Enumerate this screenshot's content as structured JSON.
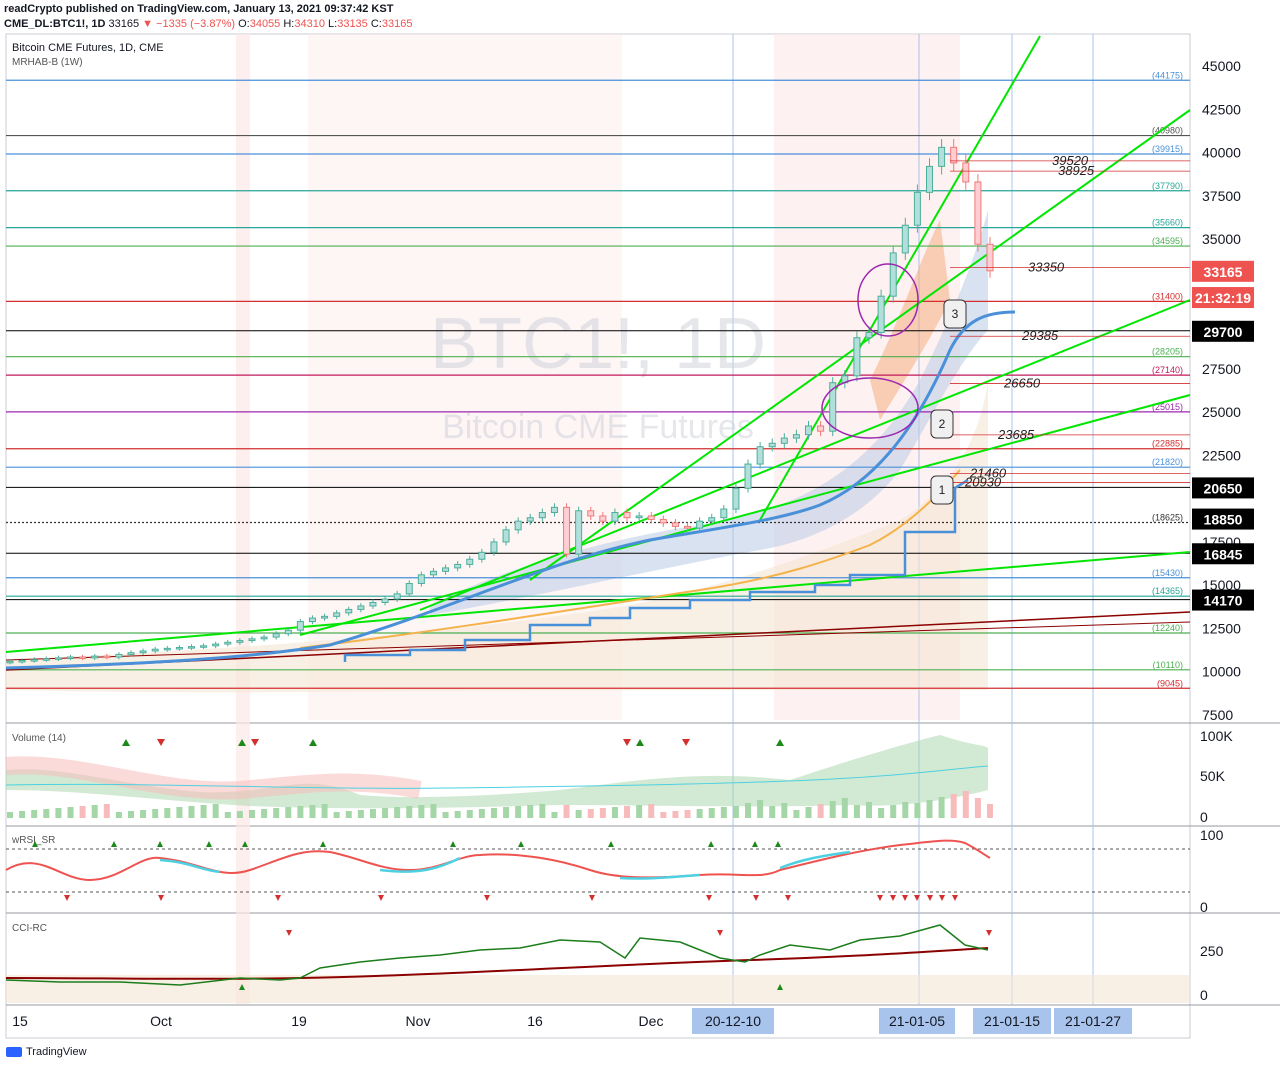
{
  "header": {
    "publisher_line": "readCrypto published on TradingView.com, January 13, 2021 09:37:42 KST",
    "symbol": "CME_DL:BTC1!, 1D",
    "last": "33165",
    "change": "−1335 (−3.87%)",
    "ohlc": {
      "o_label": "O:",
      "o": "34055",
      "h_label": "H:",
      "h": "34310",
      "l_label": "L:",
      "l": "33135",
      "c_label": "C:",
      "c": "33165"
    }
  },
  "legend": {
    "title": "Bitcoin CME Futures, 1D, CME",
    "indicator": "MRHAB-B (1W)"
  },
  "watermark": {
    "line1": "BTC1!, 1D",
    "line2": "Bitcoin CME Futures"
  },
  "footer": {
    "brand": "TradingView"
  },
  "colors": {
    "up": "#26a69a",
    "down": "#ef5350",
    "green_line": "#00e600",
    "blue_line": "#4a90d9",
    "orange_line": "#f4b24a",
    "dark_red": "#8b0000",
    "purple": "#9c27b0",
    "cci": "#1b7d1b"
  },
  "chart_data": [
    {
      "type": "candlestick",
      "title": "Bitcoin CME Futures, 1D, CME",
      "y_axis_ticks": [
        45000,
        42500,
        40000,
        37500,
        35000,
        32500,
        30000,
        27500,
        25000,
        22500,
        20000,
        17500,
        15000,
        12500,
        10000,
        7500
      ],
      "y_axis_labels": [
        "45000",
        "42500",
        "40000",
        "37500",
        "35000",
        "",
        "",
        "27500",
        "25000",
        "22500",
        "",
        "17500",
        "15000",
        "12500",
        "10000",
        "7500"
      ],
      "ylim": [
        6700,
        46800
      ],
      "x_axis_labels": [
        "15",
        "Oct",
        "19",
        "Nov",
        "16",
        "Dec",
        "20-12-10",
        "21-01-05",
        "21-01-15",
        "21-01-27"
      ],
      "close_approx": [
        10600,
        10650,
        10700,
        10750,
        10800,
        10850,
        10800,
        10900,
        10850,
        11000,
        11100,
        11200,
        11300,
        11350,
        11400,
        11450,
        11500,
        11600,
        11700,
        11800,
        11900,
        12000,
        12200,
        12400,
        12900,
        13100,
        13200,
        13400,
        13600,
        13800,
        14000,
        14200,
        14500,
        15100,
        15600,
        15800,
        16000,
        16200,
        16500,
        16900,
        17500,
        18200,
        18700,
        18900,
        19200,
        19500,
        16800,
        19300,
        19000,
        18700,
        19200,
        18900,
        19000,
        18800,
        18600,
        18400,
        18300,
        18700,
        18900,
        19400,
        20600,
        22000,
        23000,
        23200,
        23500,
        23700,
        24200,
        23900,
        26700,
        27100,
        29300,
        29600,
        31700,
        34200,
        35800,
        37700,
        39200,
        40300,
        39400,
        38300,
        34700,
        33165
      ],
      "horizontal_levels": [
        {
          "value": 44175,
          "label": "(44175)",
          "color": "#4a90d9"
        },
        {
          "value": 40980,
          "label": "(40980)",
          "color": "#555555"
        },
        {
          "value": 39915,
          "label": "(39915)",
          "color": "#4a90d9"
        },
        {
          "value": 37790,
          "label": "(37790)",
          "color": "#26a69a"
        },
        {
          "value": 35660,
          "label": "(35660)",
          "color": "#26a69a"
        },
        {
          "value": 34595,
          "label": "(34595)",
          "color": "#4caf50"
        },
        {
          "value": 31400,
          "label": "(31400)",
          "color": "#d32f2f"
        },
        {
          "value": 29700,
          "label": "",
          "color": "#000000"
        },
        {
          "value": 28205,
          "label": "(28205)",
          "color": "#4caf50"
        },
        {
          "value": 27140,
          "label": "(27140)",
          "color": "#c2185b"
        },
        {
          "value": 25015,
          "label": "(25015)",
          "color": "#9c27b0"
        },
        {
          "value": 22885,
          "label": "(22885)",
          "color": "#d32f2f"
        },
        {
          "value": 21820,
          "label": "(21820)",
          "color": "#4a90d9"
        },
        {
          "value": 20650,
          "label": "",
          "color": "#000000"
        },
        {
          "value": 18625,
          "label": "(18625)",
          "color": "#333333"
        },
        {
          "value": 16845,
          "label": "",
          "color": "#000000"
        },
        {
          "value": 15430,
          "label": "(15430)",
          "color": "#4a90d9"
        },
        {
          "value": 14365,
          "label": "(14365)",
          "color": "#26a69a"
        },
        {
          "value": 14170,
          "label": "",
          "color": "#000000"
        },
        {
          "value": 12240,
          "label": "(12240)",
          "color": "#4caf50"
        },
        {
          "value": 10110,
          "label": "(10110)",
          "color": "#4caf50"
        },
        {
          "value": 9045,
          "label": "(9045)",
          "color": "#d32f2f"
        }
      ],
      "price_badges": [
        {
          "text": "33165",
          "bg": "#ef5350",
          "fg": "#ffffff",
          "value": 33165
        },
        {
          "text": "21:32:19",
          "bg": "#ef5350",
          "fg": "#ffffff",
          "value": 31650
        },
        {
          "text": "29700",
          "bg": "#000000",
          "fg": "#ffffff",
          "value": 29700
        },
        {
          "text": "20650",
          "bg": "#000000",
          "fg": "#ffffff",
          "value": 20650
        },
        {
          "text": "18850",
          "bg": "#000000",
          "fg": "#ffffff",
          "value": 18850
        },
        {
          "text": "16845",
          "bg": "#000000",
          "fg": "#ffffff",
          "value": 16845
        },
        {
          "text": "14170",
          "bg": "#000000",
          "fg": "#ffffff",
          "value": 14170
        }
      ],
      "annotations": [
        {
          "text": "39520",
          "value": 39520
        },
        {
          "text": "38925",
          "value": 38925
        },
        {
          "text": "33350",
          "value": 33350
        },
        {
          "text": "29385",
          "value": 29385
        },
        {
          "text": "26650",
          "value": 26650
        },
        {
          "text": "23685",
          "value": 23685
        },
        {
          "text": "21460",
          "value": 21460
        },
        {
          "text": "20930",
          "value": 20930
        }
      ],
      "callouts": [
        "1",
        "2",
        "3"
      ]
    },
    {
      "type": "area",
      "title": "Volume (14)",
      "y_axis_labels": [
        "100K",
        "50K",
        "0"
      ],
      "signals": {
        "up_count": 5,
        "down_count": 4
      }
    },
    {
      "type": "line",
      "title": "wRSI_SR",
      "y_axis_labels": [
        "100",
        "0"
      ]
    },
    {
      "type": "line",
      "title": "CCI-RC",
      "y_axis_labels": [
        "250",
        "0"
      ]
    }
  ]
}
